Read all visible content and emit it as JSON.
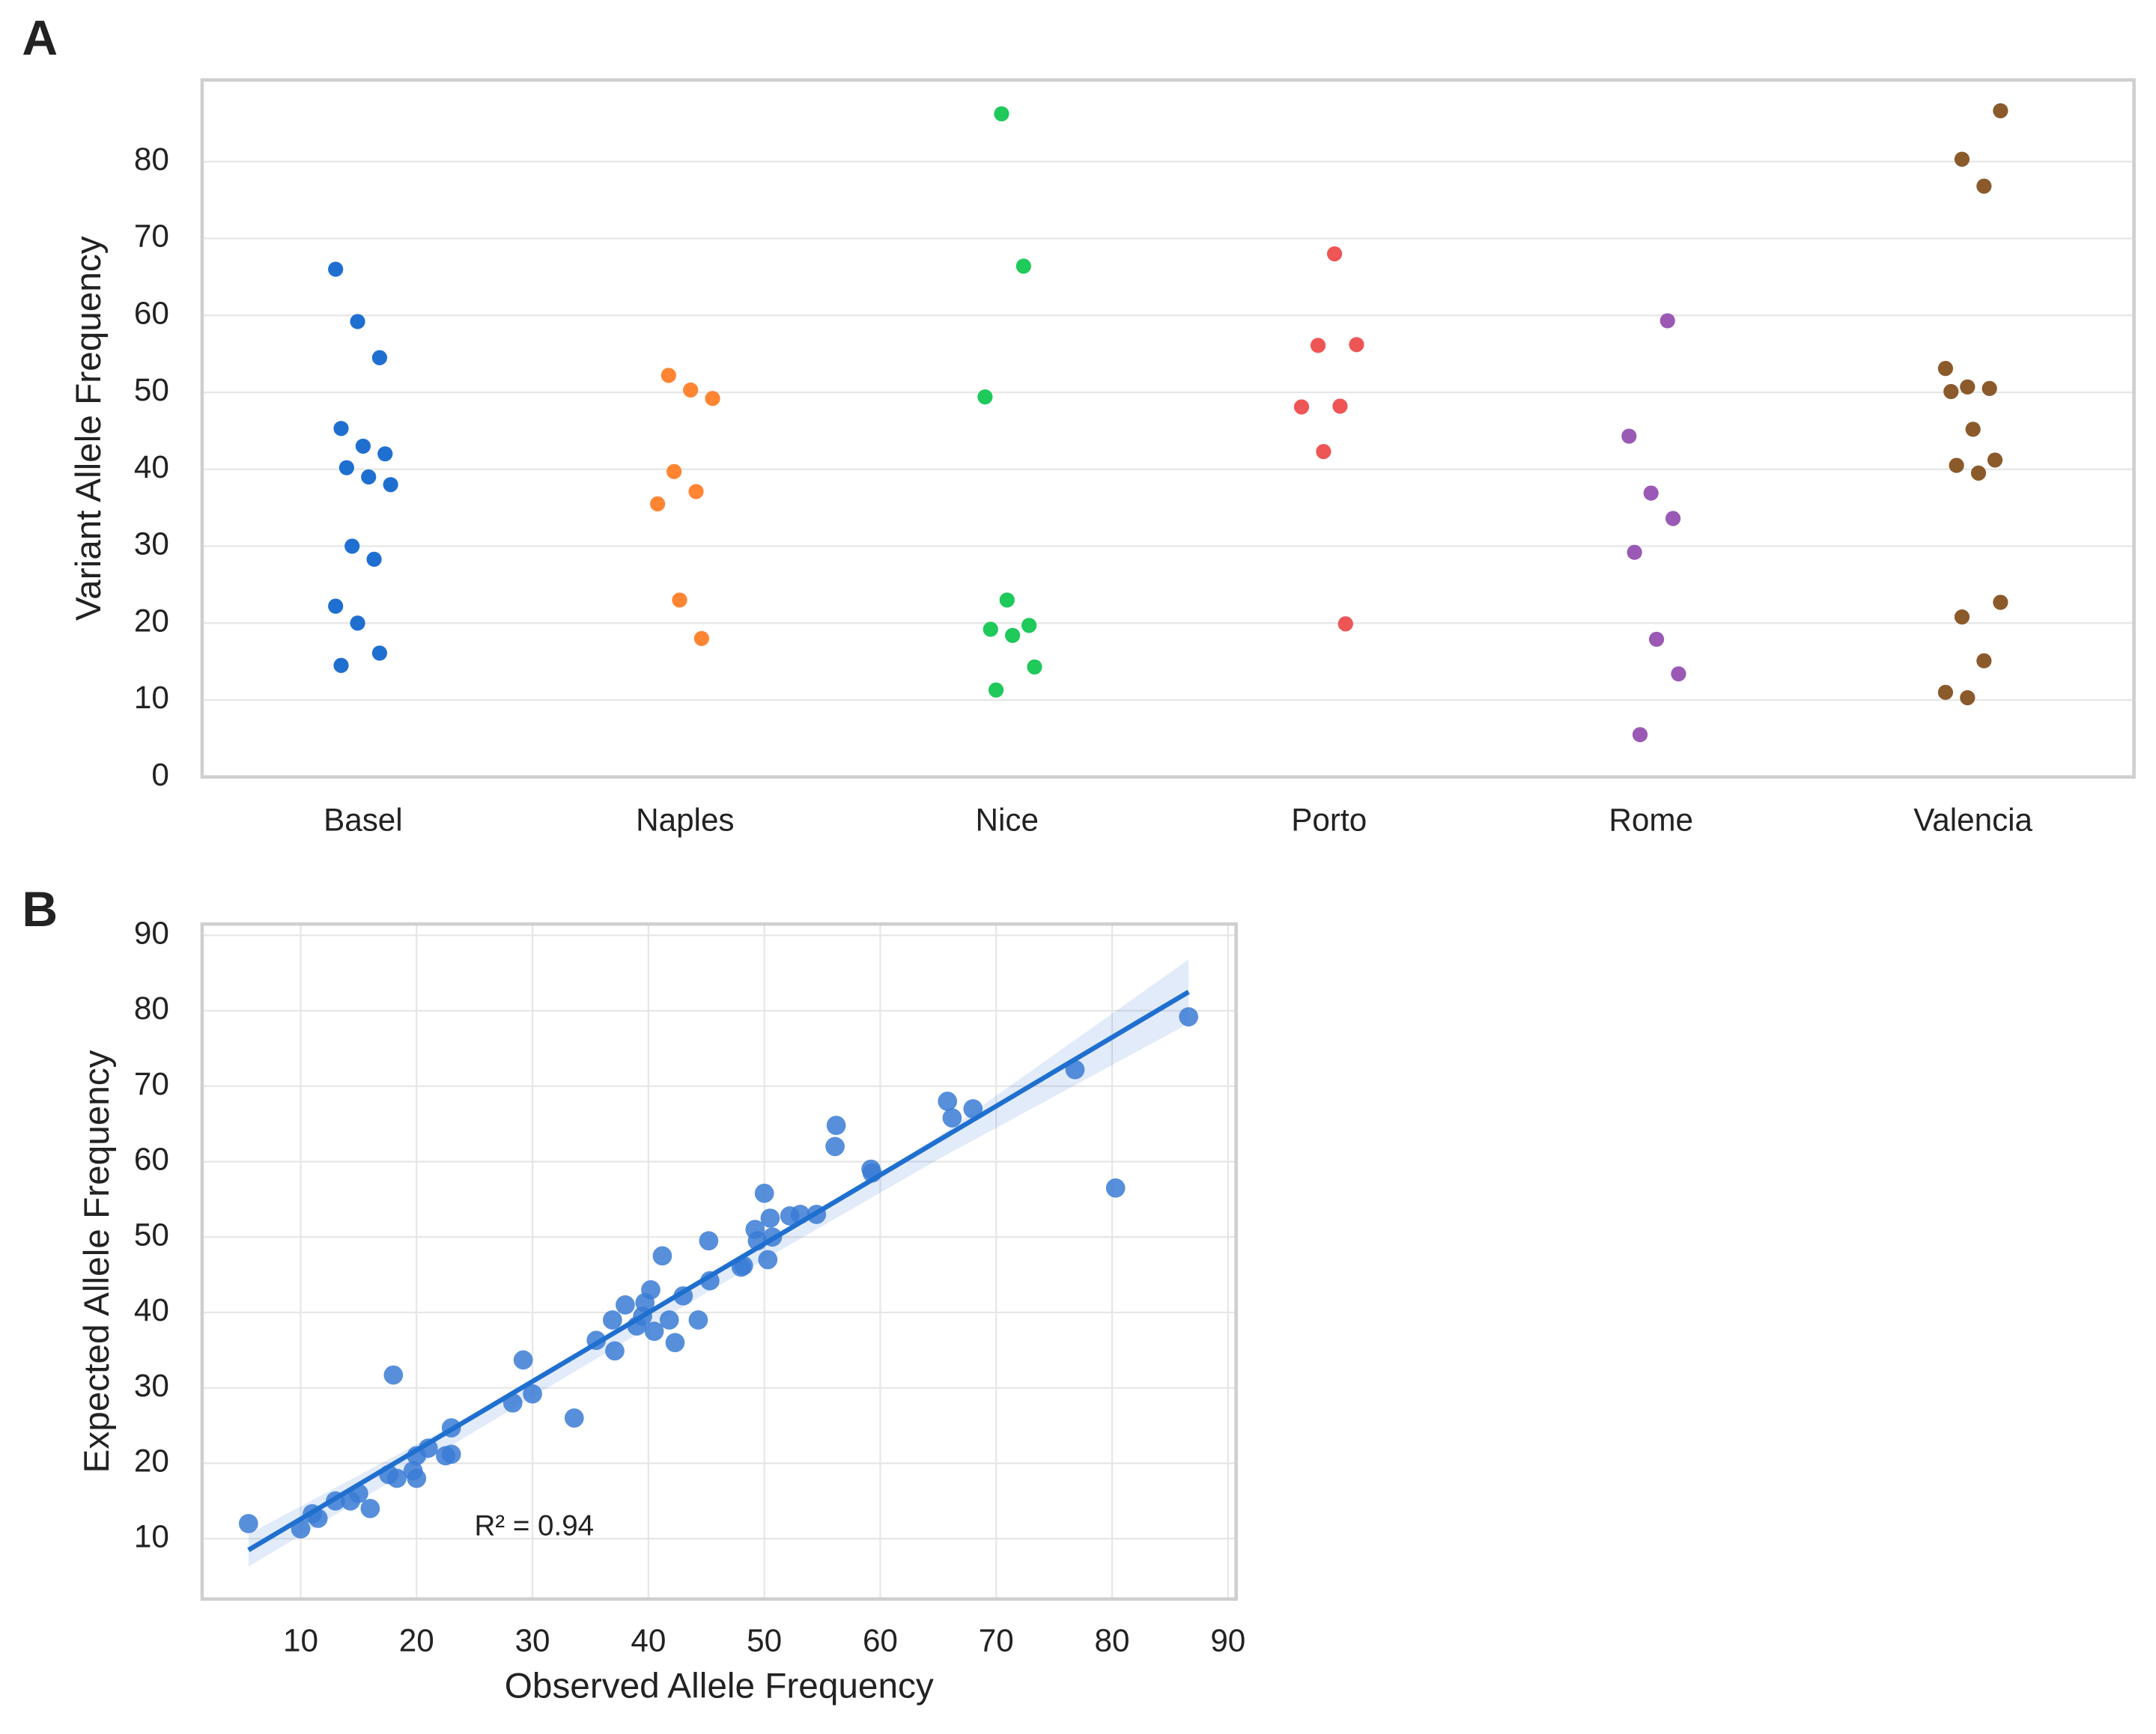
{
  "chart_data": [
    {
      "type": "strip",
      "label": "A",
      "ylabel": "Variant Allele Frequency",
      "categories": [
        "Basel",
        "Naples",
        "Nice",
        "Porto",
        "Rome",
        "Valencia"
      ],
      "colors": [
        "#1f6fd1",
        "#ff8533",
        "#1fc95a",
        "#ee5555",
        "#9b59b6",
        "#8b5a2b"
      ],
      "values": [
        [
          66,
          59.2,
          54.5,
          45.3,
          43,
          42,
          40.2,
          39,
          38,
          30,
          28.3,
          22.2,
          20,
          16.1,
          14.5
        ],
        [
          52.2,
          50.3,
          49.2,
          39.7,
          37.1,
          35.5,
          23,
          18
        ],
        [
          86.2,
          66.4,
          49.4,
          23,
          19.7,
          19.2,
          18.4,
          14.3,
          11.3
        ],
        [
          68,
          56.2,
          56.1,
          48.2,
          48.1,
          42.3,
          19.9
        ],
        [
          59.3,
          44.3,
          36.9,
          33.6,
          29.2,
          17.9,
          13.4,
          5.5
        ],
        [
          86.6,
          80.3,
          76.8,
          53.1,
          50.7,
          50.5,
          50.1,
          45.2,
          41.2,
          40.5,
          39.5,
          22.7,
          20.8,
          15.1,
          11,
          10.3
        ]
      ],
      "ylim": [
        0,
        90.6
      ],
      "yticks": [
        0,
        10,
        20,
        30,
        40,
        50,
        60,
        70,
        80
      ],
      "grid": true
    },
    {
      "type": "scatter",
      "label": "B",
      "xlabel": "Observed Allele Frequency",
      "ylabel": "Expected Allele Frequency",
      "annotation": "R² = 0.94",
      "color": "#3a7bd5",
      "fit_color": "#1f6fcf",
      "x": [
        5.5,
        10,
        11,
        11.5,
        13,
        14.3,
        15,
        16,
        17.6,
        18,
        18.3,
        19.7,
        20,
        20,
        21,
        22.5,
        23,
        23,
        28.3,
        29.2,
        30,
        33.6,
        35.5,
        36.9,
        37.1,
        38,
        39,
        39.5,
        39.7,
        40.2,
        40.5,
        41.2,
        41.8,
        42.3,
        43,
        44.3,
        45.2,
        45.3,
        48,
        48.2,
        49.2,
        49.4,
        50,
        50.3,
        50.5,
        50.7,
        52.2,
        53.1,
        54.5,
        56.1,
        56.2,
        59.2,
        59.3,
        65.8,
        66.2,
        68,
        76.8,
        80.3,
        86.6
      ],
      "values": [
        12,
        11.3,
        13.3,
        12.7,
        15,
        15,
        16,
        14,
        18.5,
        31.7,
        18,
        19,
        18,
        21,
        22,
        21,
        21.2,
        24.7,
        28,
        33.7,
        29.2,
        26,
        36.3,
        39,
        34.9,
        41,
        38.2,
        39.5,
        41.3,
        43,
        37.5,
        47.5,
        39,
        36,
        42.2,
        39,
        49.5,
        44.2,
        46,
        46.2,
        51,
        49.5,
        55.8,
        47,
        52.5,
        50,
        52.8,
        53,
        53,
        62,
        64.8,
        59,
        58.5,
        68,
        65.8,
        67,
        72.2,
        56.5,
        79.2
      ],
      "fit": {
        "x": [
          5.5,
          86.6
        ],
        "values": [
          8.5,
          82.5
        ]
      },
      "ci": {
        "x": [
          5.5,
          25,
          45,
          65,
          86.6
        ],
        "lower": [
          6.3,
          24.2,
          42.6,
          60.3,
          78.3
        ],
        "upper": [
          10.6,
          26.6,
          44.2,
          63.3,
          86.8
        ]
      },
      "xlim": [
        1.5,
        90.7
      ],
      "xticks": [
        10,
        20,
        30,
        40,
        50,
        60,
        70,
        80,
        90
      ],
      "ylim": [
        2,
        91.5
      ],
      "yticks": [
        10,
        20,
        30,
        40,
        50,
        60,
        70,
        80,
        90
      ],
      "grid": true
    }
  ]
}
